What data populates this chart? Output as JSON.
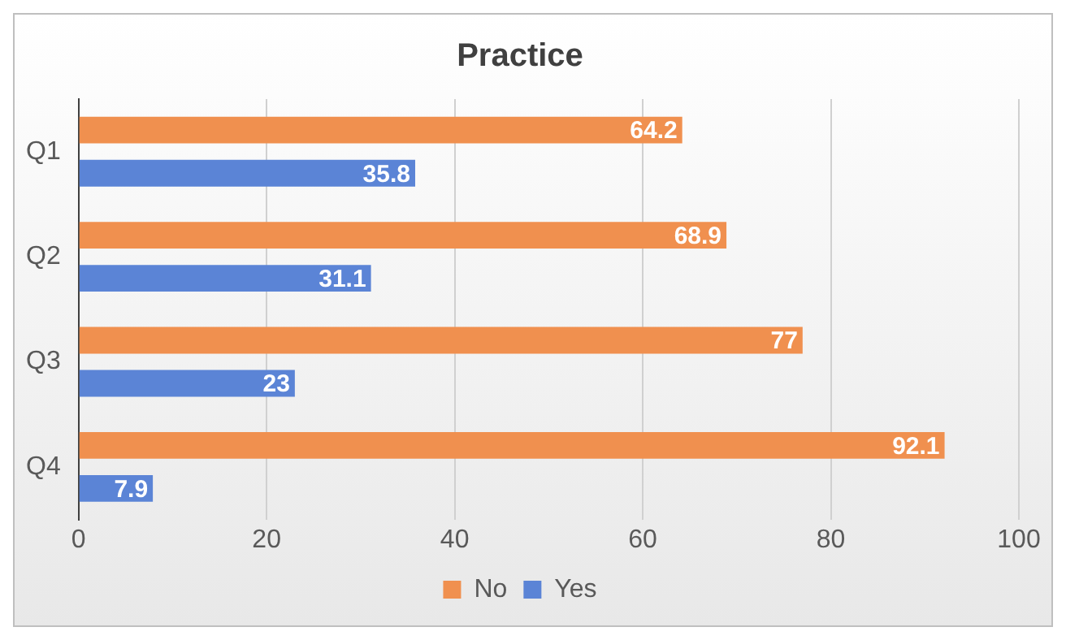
{
  "chart_data": {
    "type": "bar",
    "title": "Practice",
    "orientation": "horizontal",
    "categories": [
      "Q1",
      "Q2",
      "Q3",
      "Q4"
    ],
    "series": [
      {
        "name": "No",
        "color": "#f0904f",
        "values": [
          64.2,
          68.9,
          77,
          92.1
        ]
      },
      {
        "name": "Yes",
        "color": "#5b84d6",
        "values": [
          35.8,
          31.1,
          23,
          7.9
        ]
      }
    ],
    "xlim": [
      0,
      100
    ],
    "xticks": [
      0,
      20,
      40,
      60,
      80,
      100
    ],
    "grid": "x",
    "legend": "bottom",
    "data_labels": true
  }
}
